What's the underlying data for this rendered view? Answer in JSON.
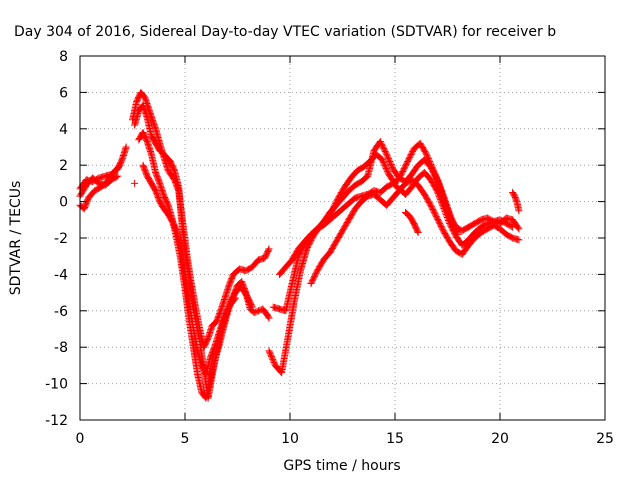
{
  "chart_data": {
    "type": "scatter",
    "title": "Day 304 of 2016, Sidereal Day-to-day VTEC variation (SDTVAR) for receiver b",
    "xlabel": "GPS time / hours",
    "ylabel": "SDTVAR / TECUs",
    "xlim": [
      0,
      25
    ],
    "ylim": [
      -12,
      8
    ],
    "xticks": [
      0,
      5,
      10,
      15,
      20,
      25
    ],
    "yticks": [
      -12,
      -10,
      -8,
      -6,
      -4,
      -2,
      0,
      2,
      4,
      6,
      8
    ],
    "grid": true,
    "marker": "+",
    "color": "#ff0000",
    "series": [
      {
        "x": [
          0,
          0.3,
          0.6,
          0.9,
          1.2,
          1.5,
          1.8,
          2.0,
          2.2
        ],
        "y": [
          0.7,
          1.2,
          1.1,
          1.3,
          1.4,
          1.5,
          1.8,
          2.3,
          3.0
        ]
      },
      {
        "x": [
          0,
          0.3,
          0.6,
          0.9,
          1.2,
          1.5,
          1.8
        ],
        "y": [
          0.3,
          0.9,
          1.3,
          1.0,
          0.9,
          1.2,
          1.4
        ]
      },
      {
        "x": [
          0,
          0.2,
          0.4,
          0.7,
          1.0,
          1.3,
          1.6,
          1.9
        ],
        "y": [
          -0.2,
          -0.4,
          0.2,
          0.6,
          0.8,
          1.1,
          1.6,
          2.0
        ]
      },
      {
        "x": [
          2.5,
          2.7,
          2.9,
          3.1,
          3.3,
          3.6,
          3.9,
          4.2,
          4.5,
          4.7,
          4.9,
          5.1,
          5.3,
          5.5,
          5.7,
          5.9,
          6.1,
          6.3,
          6.5,
          6.7,
          6.9,
          7.1,
          7.3,
          7.6,
          7.9,
          8.2,
          8.5,
          8.8,
          9.0
        ],
        "y": [
          4.5,
          5.5,
          6.0,
          5.7,
          5.0,
          4.0,
          2.8,
          1.7,
          1.2,
          0.6,
          -1.2,
          -3.0,
          -4.5,
          -5.8,
          -7.0,
          -8.0,
          -7.5,
          -6.8,
          -6.6,
          -6.0,
          -5.3,
          -4.6,
          -4.0,
          -3.7,
          -3.8,
          -3.6,
          -3.2,
          -3.1,
          -2.6
        ]
      },
      {
        "x": [
          2.6,
          2.8,
          3.0,
          3.2,
          3.4,
          3.6,
          3.8,
          4.0,
          4.3,
          4.5,
          4.7,
          4.9,
          5.1,
          5.3,
          5.5,
          5.7,
          5.9,
          6.1,
          6.3,
          6.5,
          6.7,
          6.9,
          7.1,
          7.3,
          7.5,
          7.7,
          7.9,
          8.1,
          8.3,
          8.5,
          8.7,
          8.9,
          9.0
        ],
        "y": [
          4.2,
          5.0,
          5.3,
          4.6,
          3.6,
          3.2,
          2.8,
          2.6,
          2.2,
          1.7,
          0.8,
          -1.8,
          -3.5,
          -5.2,
          -6.5,
          -7.6,
          -9.2,
          -10.8,
          -9.5,
          -8.3,
          -7.2,
          -6.4,
          -5.8,
          -5.2,
          -4.6,
          -4.4,
          -5.0,
          -5.9,
          -6.1,
          -6.0,
          -5.9,
          -6.2,
          -6.4
        ]
      },
      {
        "x": [
          2.8,
          3.0,
          3.2,
          3.4,
          3.6,
          3.8,
          4.0,
          4.2,
          4.4,
          4.6,
          4.8,
          5.0,
          5.2,
          5.4,
          5.6,
          5.8,
          6.0,
          6.2,
          6.4,
          6.6,
          6.8,
          7.0,
          7.2,
          7.4,
          7.6,
          7.8,
          8.0,
          8.2
        ],
        "y": [
          3.4,
          3.8,
          3.3,
          2.6,
          1.6,
          1.0,
          0.3,
          -0.2,
          -1.0,
          -2.0,
          -3.2,
          -4.8,
          -6.5,
          -8.0,
          -9.5,
          -10.5,
          -10.8,
          -9.8,
          -8.8,
          -8.0,
          -7.1,
          -6.2,
          -5.4,
          -5.0,
          -4.7,
          -4.9,
          -5.3,
          -5.8
        ]
      },
      {
        "x": [
          3.0,
          3.2,
          3.4,
          3.6,
          3.8,
          4.0,
          4.2,
          4.4,
          4.6,
          4.8,
          5.0,
          5.2,
          5.4,
          5.6,
          5.8,
          6.0,
          6.2,
          6.4,
          6.6,
          6.8,
          7.0,
          7.2,
          7.4
        ],
        "y": [
          2.0,
          1.4,
          1.0,
          0.6,
          0.0,
          -0.4,
          -0.7,
          -1.1,
          -1.6,
          -2.6,
          -4.0,
          -5.6,
          -7.0,
          -8.2,
          -9.0,
          -9.5,
          -8.6,
          -8.0,
          -7.3,
          -6.6,
          -6.0,
          -5.6,
          -5.3
        ]
      },
      {
        "x": [
          9.0,
          9.3,
          9.6,
          9.9,
          10.2,
          10.5,
          10.8,
          11.1,
          11.4,
          11.7,
          12.0,
          12.3,
          12.6,
          12.9,
          13.2,
          13.5,
          13.8,
          14.1,
          14.4,
          14.7,
          15.0,
          15.3,
          15.6,
          15.9,
          16.2,
          16.5,
          16.8,
          17.1,
          17.4,
          17.7,
          18.0
        ],
        "y": [
          -8.2,
          -9.0,
          -9.4,
          -7.5,
          -5.5,
          -3.8,
          -2.6,
          -1.9,
          -1.4,
          -1.0,
          -0.5,
          0.2,
          0.8,
          1.3,
          1.7,
          1.9,
          2.2,
          2.6,
          2.3,
          1.5,
          1.0,
          1.5,
          2.2,
          2.9,
          3.2,
          2.6,
          1.8,
          1.0,
          0.0,
          -1.0,
          -1.8
        ]
      },
      {
        "x": [
          9.2,
          9.5,
          9.8,
          10.1,
          10.4,
          10.7,
          11.0,
          11.3,
          11.6,
          11.9,
          12.2,
          12.5,
          12.8,
          13.1,
          13.4,
          13.7,
          14.0,
          14.3,
          14.6,
          14.9,
          15.2,
          15.5,
          15.8,
          16.1,
          16.4,
          16.7,
          17.0,
          17.3,
          17.6,
          17.9,
          18.2,
          18.5,
          18.8,
          19.1,
          19.4,
          19.7,
          20.0,
          20.3,
          20.6,
          20.9
        ],
        "y": [
          -5.8,
          -5.9,
          -6.0,
          -4.5,
          -3.0,
          -2.3,
          -1.8,
          -1.5,
          -1.1,
          -0.6,
          -0.2,
          0.2,
          0.6,
          0.9,
          1.1,
          1.4,
          2.8,
          3.3,
          2.6,
          1.8,
          1.3,
          1.1,
          1.5,
          2.0,
          2.3,
          1.9,
          1.2,
          0.2,
          -0.8,
          -1.4,
          -1.6,
          -1.4,
          -1.2,
          -1.0,
          -0.9,
          -1.1,
          -1.2,
          -0.9,
          -1.0,
          -1.5
        ]
      },
      {
        "x": [
          9.5,
          9.8,
          10.1,
          10.4,
          10.7,
          11.0,
          11.3,
          11.6,
          11.9,
          12.2,
          12.5,
          12.8,
          13.1,
          13.4,
          13.7,
          14.0,
          14.3,
          14.6,
          14.9,
          15.2,
          15.5,
          15.8,
          16.1,
          16.4,
          16.7,
          17.0,
          17.3,
          17.6,
          17.9,
          18.2,
          18.5,
          18.8,
          19.1,
          19.4,
          19.7,
          20.0,
          20.3,
          20.6
        ],
        "y": [
          -4.0,
          -3.6,
          -3.2,
          -2.6,
          -2.2,
          -1.8,
          -1.5,
          -1.3,
          -1.0,
          -0.7,
          -0.4,
          -0.1,
          0.2,
          0.3,
          0.4,
          0.6,
          0.5,
          0.8,
          1.0,
          0.7,
          0.4,
          0.8,
          1.3,
          1.6,
          1.2,
          0.6,
          -0.3,
          -1.2,
          -1.9,
          -2.4,
          -2.1,
          -1.7,
          -1.4,
          -1.2,
          -1.1,
          -1.0,
          -1.2,
          -1.4
        ]
      },
      {
        "x": [
          11.0,
          11.3,
          11.6,
          11.9,
          12.2,
          12.5,
          12.8,
          13.1,
          13.4,
          13.7,
          14.0,
          14.3,
          14.6,
          14.9,
          15.2,
          15.5,
          15.8,
          16.1,
          16.4,
          16.7,
          17.0,
          17.3,
          17.6,
          17.9,
          18.2,
          18.5,
          18.8,
          19.1,
          19.4,
          19.7,
          20.0,
          20.3,
          20.6,
          20.9
        ],
        "y": [
          -4.5,
          -3.8,
          -3.2,
          -2.8,
          -2.2,
          -1.6,
          -1.0,
          -0.4,
          0.0,
          0.3,
          0.4,
          0.1,
          -0.2,
          0.2,
          0.6,
          1.0,
          1.2,
          0.9,
          0.4,
          -0.2,
          -0.9,
          -1.6,
          -2.2,
          -2.7,
          -2.9,
          -2.4,
          -2.0,
          -1.7,
          -1.5,
          -1.3,
          -1.5,
          -1.8,
          -2.0,
          -2.1
        ]
      },
      {
        "x": [
          15.5,
          15.7,
          15.9,
          16.1
        ],
        "y": [
          -0.6,
          -0.8,
          -1.2,
          -1.7
        ]
      },
      {
        "x": [
          20.6,
          20.7,
          20.8,
          20.9
        ],
        "y": [
          0.5,
          0.3,
          0.0,
          -0.5
        ]
      },
      {
        "x": [
          2.6
        ],
        "y": [
          1.0
        ]
      }
    ]
  }
}
